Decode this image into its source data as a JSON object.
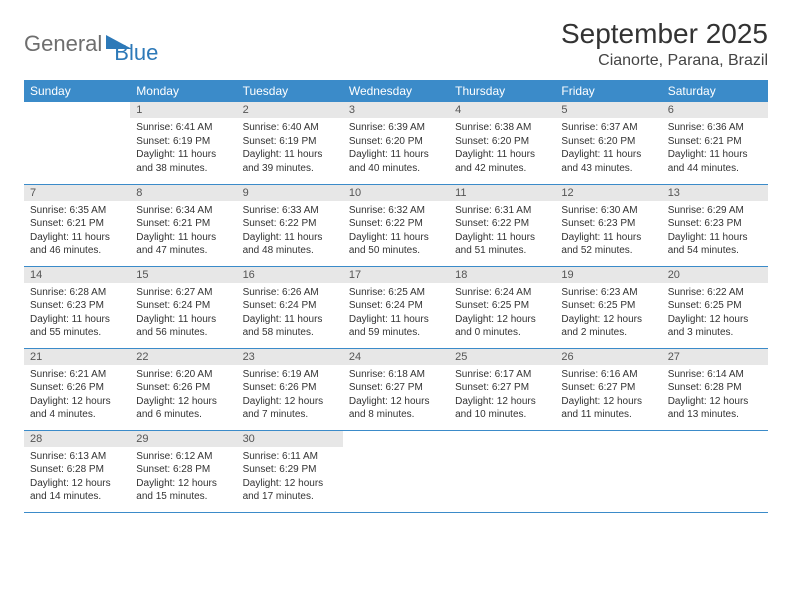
{
  "logo": {
    "part1": "General",
    "part2": "Blue"
  },
  "title": "September 2025",
  "location": "Cianorte, Parana, Brazil",
  "dow": [
    "Sunday",
    "Monday",
    "Tuesday",
    "Wednesday",
    "Thursday",
    "Friday",
    "Saturday"
  ],
  "colors": {
    "header_bg": "#3b8bc9",
    "header_text": "#ffffff",
    "daynum_bg": "#e7e7e7",
    "row_border": "#3b8bc9",
    "logo_gray": "#6e6e6e",
    "logo_blue": "#2d79b8"
  },
  "weeks": [
    [
      {
        "n": "",
        "sr": "",
        "ss": "",
        "dl": ""
      },
      {
        "n": "1",
        "sr": "Sunrise: 6:41 AM",
        "ss": "Sunset: 6:19 PM",
        "dl": "Daylight: 11 hours and 38 minutes."
      },
      {
        "n": "2",
        "sr": "Sunrise: 6:40 AM",
        "ss": "Sunset: 6:19 PM",
        "dl": "Daylight: 11 hours and 39 minutes."
      },
      {
        "n": "3",
        "sr": "Sunrise: 6:39 AM",
        "ss": "Sunset: 6:20 PM",
        "dl": "Daylight: 11 hours and 40 minutes."
      },
      {
        "n": "4",
        "sr": "Sunrise: 6:38 AM",
        "ss": "Sunset: 6:20 PM",
        "dl": "Daylight: 11 hours and 42 minutes."
      },
      {
        "n": "5",
        "sr": "Sunrise: 6:37 AM",
        "ss": "Sunset: 6:20 PM",
        "dl": "Daylight: 11 hours and 43 minutes."
      },
      {
        "n": "6",
        "sr": "Sunrise: 6:36 AM",
        "ss": "Sunset: 6:21 PM",
        "dl": "Daylight: 11 hours and 44 minutes."
      }
    ],
    [
      {
        "n": "7",
        "sr": "Sunrise: 6:35 AM",
        "ss": "Sunset: 6:21 PM",
        "dl": "Daylight: 11 hours and 46 minutes."
      },
      {
        "n": "8",
        "sr": "Sunrise: 6:34 AM",
        "ss": "Sunset: 6:21 PM",
        "dl": "Daylight: 11 hours and 47 minutes."
      },
      {
        "n": "9",
        "sr": "Sunrise: 6:33 AM",
        "ss": "Sunset: 6:22 PM",
        "dl": "Daylight: 11 hours and 48 minutes."
      },
      {
        "n": "10",
        "sr": "Sunrise: 6:32 AM",
        "ss": "Sunset: 6:22 PM",
        "dl": "Daylight: 11 hours and 50 minutes."
      },
      {
        "n": "11",
        "sr": "Sunrise: 6:31 AM",
        "ss": "Sunset: 6:22 PM",
        "dl": "Daylight: 11 hours and 51 minutes."
      },
      {
        "n": "12",
        "sr": "Sunrise: 6:30 AM",
        "ss": "Sunset: 6:23 PM",
        "dl": "Daylight: 11 hours and 52 minutes."
      },
      {
        "n": "13",
        "sr": "Sunrise: 6:29 AM",
        "ss": "Sunset: 6:23 PM",
        "dl": "Daylight: 11 hours and 54 minutes."
      }
    ],
    [
      {
        "n": "14",
        "sr": "Sunrise: 6:28 AM",
        "ss": "Sunset: 6:23 PM",
        "dl": "Daylight: 11 hours and 55 minutes."
      },
      {
        "n": "15",
        "sr": "Sunrise: 6:27 AM",
        "ss": "Sunset: 6:24 PM",
        "dl": "Daylight: 11 hours and 56 minutes."
      },
      {
        "n": "16",
        "sr": "Sunrise: 6:26 AM",
        "ss": "Sunset: 6:24 PM",
        "dl": "Daylight: 11 hours and 58 minutes."
      },
      {
        "n": "17",
        "sr": "Sunrise: 6:25 AM",
        "ss": "Sunset: 6:24 PM",
        "dl": "Daylight: 11 hours and 59 minutes."
      },
      {
        "n": "18",
        "sr": "Sunrise: 6:24 AM",
        "ss": "Sunset: 6:25 PM",
        "dl": "Daylight: 12 hours and 0 minutes."
      },
      {
        "n": "19",
        "sr": "Sunrise: 6:23 AM",
        "ss": "Sunset: 6:25 PM",
        "dl": "Daylight: 12 hours and 2 minutes."
      },
      {
        "n": "20",
        "sr": "Sunrise: 6:22 AM",
        "ss": "Sunset: 6:25 PM",
        "dl": "Daylight: 12 hours and 3 minutes."
      }
    ],
    [
      {
        "n": "21",
        "sr": "Sunrise: 6:21 AM",
        "ss": "Sunset: 6:26 PM",
        "dl": "Daylight: 12 hours and 4 minutes."
      },
      {
        "n": "22",
        "sr": "Sunrise: 6:20 AM",
        "ss": "Sunset: 6:26 PM",
        "dl": "Daylight: 12 hours and 6 minutes."
      },
      {
        "n": "23",
        "sr": "Sunrise: 6:19 AM",
        "ss": "Sunset: 6:26 PM",
        "dl": "Daylight: 12 hours and 7 minutes."
      },
      {
        "n": "24",
        "sr": "Sunrise: 6:18 AM",
        "ss": "Sunset: 6:27 PM",
        "dl": "Daylight: 12 hours and 8 minutes."
      },
      {
        "n": "25",
        "sr": "Sunrise: 6:17 AM",
        "ss": "Sunset: 6:27 PM",
        "dl": "Daylight: 12 hours and 10 minutes."
      },
      {
        "n": "26",
        "sr": "Sunrise: 6:16 AM",
        "ss": "Sunset: 6:27 PM",
        "dl": "Daylight: 12 hours and 11 minutes."
      },
      {
        "n": "27",
        "sr": "Sunrise: 6:14 AM",
        "ss": "Sunset: 6:28 PM",
        "dl": "Daylight: 12 hours and 13 minutes."
      }
    ],
    [
      {
        "n": "28",
        "sr": "Sunrise: 6:13 AM",
        "ss": "Sunset: 6:28 PM",
        "dl": "Daylight: 12 hours and 14 minutes."
      },
      {
        "n": "29",
        "sr": "Sunrise: 6:12 AM",
        "ss": "Sunset: 6:28 PM",
        "dl": "Daylight: 12 hours and 15 minutes."
      },
      {
        "n": "30",
        "sr": "Sunrise: 6:11 AM",
        "ss": "Sunset: 6:29 PM",
        "dl": "Daylight: 12 hours and 17 minutes."
      },
      {
        "n": "",
        "sr": "",
        "ss": "",
        "dl": ""
      },
      {
        "n": "",
        "sr": "",
        "ss": "",
        "dl": ""
      },
      {
        "n": "",
        "sr": "",
        "ss": "",
        "dl": ""
      },
      {
        "n": "",
        "sr": "",
        "ss": "",
        "dl": ""
      }
    ]
  ]
}
